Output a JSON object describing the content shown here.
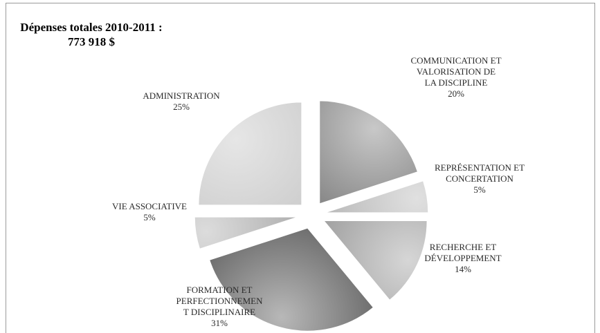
{
  "chart_data": {
    "type": "pie",
    "title": "Dépenses totales 2010-2011 :",
    "subtitle": "773 918 $",
    "slices": [
      {
        "label_lines": [
          "COMMUNICATION ET",
          "VALORISATION DE",
          "LA DISCIPLINE"
        ],
        "percent_label": "20%",
        "value": 20,
        "color_light": "#c8c8c8",
        "color_dark": "#6a6a6a"
      },
      {
        "label_lines": [
          "REPRÉSENTATION ET",
          "CONCERTATION"
        ],
        "percent_label": "5%",
        "value": 5,
        "color_light": "#e0e0e0",
        "color_dark": "#a8a8a8"
      },
      {
        "label_lines": [
          "RECHERCHE ET",
          "DÉVELOPPEMENT"
        ],
        "percent_label": "14%",
        "value": 14,
        "color_light": "#d6d6d6",
        "color_dark": "#8a8a8a"
      },
      {
        "label_lines": [
          "FORMATION ET",
          "PERFECTIONNEMEN",
          "T DISCIPLINAIRE"
        ],
        "percent_label": "31%",
        "value": 31,
        "color_light": "#b8b8b8",
        "color_dark": "#4e4e4e"
      },
      {
        "label_lines": [
          "VIE ASSOCIATIVE"
        ],
        "percent_label": "5%",
        "value": 5,
        "color_light": "#dcdcdc",
        "color_dark": "#9c9c9c"
      },
      {
        "label_lines": [
          "ADMINISTRATION"
        ],
        "percent_label": "25%",
        "value": 25,
        "color_light": "#e6e6e6",
        "color_dark": "#c4c4c4"
      }
    ]
  }
}
